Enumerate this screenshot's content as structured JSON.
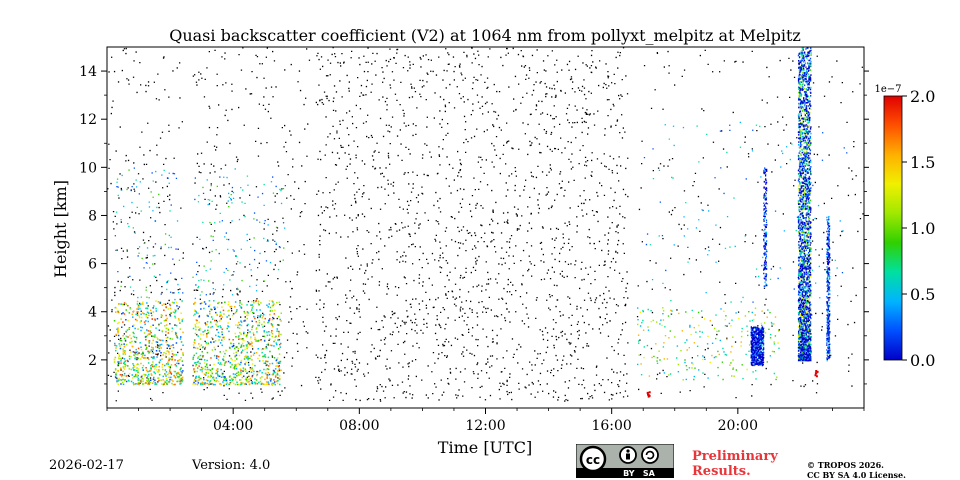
{
  "chart_data": {
    "type": "heatmap",
    "title": "Quasi backscatter coefficient (V2) at 1064 nm from pollyxt_melpitz at Melpitz",
    "xlabel": "Time [UTC]",
    "ylabel": "Height [km]",
    "x_range_hours": [
      0,
      24
    ],
    "ylim": [
      0,
      15
    ],
    "x_ticks": [
      {
        "value": 4,
        "label": "04:00"
      },
      {
        "value": 8,
        "label": "08:00"
      },
      {
        "value": 12,
        "label": "12:00"
      },
      {
        "value": 16,
        "label": "16:00"
      },
      {
        "value": 20,
        "label": "20:00"
      }
    ],
    "y_ticks": [
      {
        "value": 2,
        "label": "2"
      },
      {
        "value": 4,
        "label": "4"
      },
      {
        "value": 6,
        "label": "6"
      },
      {
        "value": 8,
        "label": "8"
      },
      {
        "value": 10,
        "label": "10"
      },
      {
        "value": 12,
        "label": "12"
      },
      {
        "value": 14,
        "label": "14"
      }
    ],
    "colorbar": {
      "exponent_label": "1e−7",
      "range": [
        0,
        2.0
      ],
      "ticks": [
        {
          "value": 0,
          "label": "0.0"
        },
        {
          "value": 0.5,
          "label": "0.5"
        },
        {
          "value": 1.0,
          "label": "1.0"
        },
        {
          "value": 1.5,
          "label": "1.5"
        },
        {
          "value": 2.0,
          "label": "2.0"
        }
      ],
      "colors": [
        "#0000c8",
        "#0050ff",
        "#00b4ff",
        "#00e0a0",
        "#30d000",
        "#a0e800",
        "#f0f000",
        "#ffb000",
        "#ff5000",
        "#e00000"
      ]
    },
    "features": [
      {
        "name": "noise-speckle",
        "t": [
          0,
          24
        ],
        "h": [
          0.3,
          15
        ]
      },
      {
        "name": "aerosol-layer-night",
        "t": [
          0.2,
          5.5
        ],
        "h": [
          1.0,
          4.5
        ]
      },
      {
        "name": "cloud-column",
        "t": [
          21.9,
          22.3
        ],
        "h": [
          2.0,
          15.0
        ]
      },
      {
        "name": "cloud-column-2",
        "t": [
          22.8,
          22.9
        ],
        "h": [
          2.0,
          8.0
        ]
      },
      {
        "name": "low-cloud",
        "t": [
          20.4,
          20.8
        ],
        "h": [
          1.8,
          3.4
        ]
      }
    ],
    "data_gaps": [
      {
        "t": [
          2.4,
          2.7
        ]
      },
      {
        "t": [
          6.4,
          6.6
        ]
      },
      {
        "t": [
          16.5,
          16.8
        ]
      }
    ]
  },
  "footer": {
    "date": "2026-02-17",
    "version": "Version: 4.0",
    "license_badge_text": "BY   SA",
    "preliminary_line1": "Preliminary",
    "preliminary_line2": "Results.",
    "copyright_line1": "© TROPOS 2026.",
    "copyright_line2": "CC BY SA 4.0 License."
  }
}
